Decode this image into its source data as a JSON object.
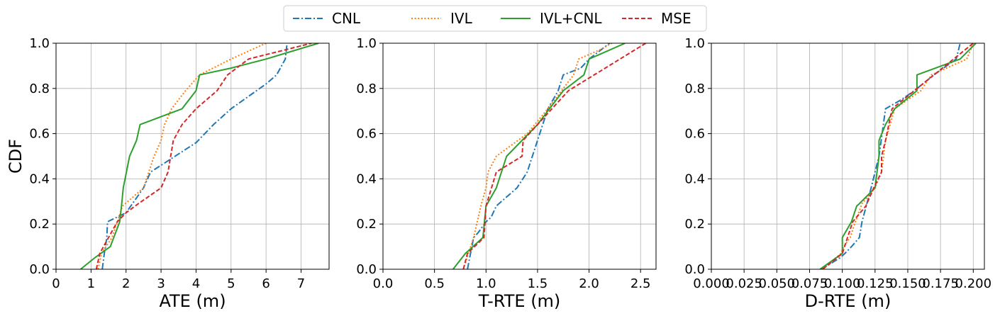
{
  "legend": {
    "placement": "top-center",
    "entries": [
      {
        "label": "CNL",
        "color": "#1f77b4",
        "dash": "dashdot"
      },
      {
        "label": "IVL",
        "color": "#ff7f0e",
        "dash": "dotted"
      },
      {
        "label": "IVL+CNL",
        "color": "#2ca02c",
        "dash": "solid"
      },
      {
        "label": "MSE",
        "color": "#d62728",
        "dash": "dashed"
      }
    ]
  },
  "chart_data": [
    {
      "type": "line",
      "xlabel": "ATE (m)",
      "ylabel": "CDF",
      "xlim": [
        0,
        7.8
      ],
      "ylim": [
        0,
        1.0
      ],
      "xticks": [
        "0",
        "1",
        "2",
        "3",
        "4",
        "5",
        "6",
        "7"
      ],
      "yticks": [
        "0.0",
        "0.2",
        "0.4",
        "0.6",
        "0.8",
        "1.0"
      ],
      "grid": true,
      "series": [
        {
          "name": "CNL",
          "x": [
            1.32,
            1.38,
            1.45,
            1.47,
            2.0,
            2.5,
            2.7,
            3.0,
            4.0,
            4.5,
            5.0,
            6.0,
            6.3,
            6.55,
            6.6
          ],
          "y": [
            0.0,
            0.07,
            0.14,
            0.21,
            0.25,
            0.36,
            0.43,
            0.46,
            0.56,
            0.64,
            0.71,
            0.82,
            0.86,
            0.93,
            1.0
          ]
        },
        {
          "name": "IVL",
          "x": [
            1.2,
            1.3,
            1.6,
            1.75,
            1.9,
            2.5,
            2.8,
            3.0,
            3.1,
            3.3,
            3.7,
            4.1,
            5.0,
            6.0
          ],
          "y": [
            0.0,
            0.07,
            0.14,
            0.21,
            0.28,
            0.36,
            0.5,
            0.57,
            0.64,
            0.71,
            0.79,
            0.86,
            0.93,
            1.0
          ]
        },
        {
          "name": "IVL+CNL",
          "x": [
            0.7,
            1.1,
            1.55,
            1.65,
            1.82,
            1.87,
            1.92,
            2.1,
            2.3,
            2.4,
            3.6,
            4.0,
            4.1,
            5.0,
            6.0,
            7.5
          ],
          "y": [
            0.0,
            0.05,
            0.1,
            0.14,
            0.21,
            0.28,
            0.36,
            0.5,
            0.57,
            0.64,
            0.71,
            0.79,
            0.86,
            0.89,
            0.93,
            1.0
          ]
        },
        {
          "name": "MSE",
          "x": [
            1.15,
            1.25,
            1.5,
            1.75,
            2.0,
            2.35,
            3.0,
            3.2,
            3.35,
            3.6,
            4.0,
            4.6,
            4.9,
            5.5,
            7.3
          ],
          "y": [
            0.0,
            0.07,
            0.14,
            0.21,
            0.25,
            0.29,
            0.36,
            0.43,
            0.57,
            0.64,
            0.71,
            0.79,
            0.86,
            0.93,
            1.0
          ]
        }
      ]
    },
    {
      "type": "line",
      "xlabel": "T-RTE (m)",
      "ylabel": "",
      "xlim": [
        0,
        2.65
      ],
      "ylim": [
        0,
        1.0
      ],
      "xticks": [
        "0.0",
        "0.5",
        "1.0",
        "1.5",
        "2.0",
        "2.5"
      ],
      "yticks": [
        "0.0",
        "0.2",
        "0.4",
        "0.6",
        "0.8",
        "1.0"
      ],
      "grid": true,
      "series": [
        {
          "name": "CNL",
          "x": [
            0.82,
            0.88,
            0.92,
            1.0,
            1.05,
            1.1,
            1.3,
            1.4,
            1.5,
            1.6,
            1.7,
            1.75,
            1.92,
            2.0,
            2.2
          ],
          "y": [
            0.0,
            0.14,
            0.16,
            0.21,
            0.23,
            0.28,
            0.36,
            0.43,
            0.57,
            0.71,
            0.79,
            0.86,
            0.89,
            0.93,
            1.0
          ]
        },
        {
          "name": "IVL",
          "x": [
            0.78,
            0.88,
            0.95,
            1.0,
            1.02,
            1.1,
            1.4,
            1.6,
            1.85,
            1.9,
            2.1,
            2.22
          ],
          "y": [
            0.0,
            0.14,
            0.28,
            0.36,
            0.43,
            0.5,
            0.6,
            0.71,
            0.86,
            0.93,
            0.97,
            1.0
          ]
        },
        {
          "name": "IVL+CNL",
          "x": [
            0.68,
            0.8,
            0.97,
            1.0,
            1.1,
            1.2,
            1.5,
            1.75,
            1.95,
            2.0,
            2.35
          ],
          "y": [
            0.0,
            0.07,
            0.14,
            0.28,
            0.36,
            0.5,
            0.64,
            0.79,
            0.86,
            0.93,
            1.0
          ]
        },
        {
          "name": "MSE",
          "x": [
            0.78,
            0.82,
            0.98,
            1.0,
            1.1,
            1.35,
            1.36,
            1.5,
            1.8,
            2.55
          ],
          "y": [
            0.0,
            0.07,
            0.14,
            0.28,
            0.43,
            0.5,
            0.57,
            0.64,
            0.79,
            1.0
          ]
        }
      ]
    },
    {
      "type": "line",
      "xlabel": "D-RTE (m)",
      "ylabel": "",
      "xlim": [
        0,
        0.2085
      ],
      "ylim": [
        0,
        1.0
      ],
      "xticks": [
        "0.000",
        "0.025",
        "0.050",
        "0.075",
        "0.100",
        "0.125",
        "0.150",
        "0.175",
        "0.200"
      ],
      "yticks": [
        "0.0",
        "0.2",
        "0.4",
        "0.6",
        "0.8",
        "1.0"
      ],
      "grid": true,
      "series": [
        {
          "name": "CNL",
          "x": [
            0.084,
            0.098,
            0.102,
            0.107,
            0.113,
            0.115,
            0.122,
            0.125,
            0.128,
            0.133,
            0.145,
            0.155,
            0.17,
            0.187,
            0.19
          ],
          "y": [
            0.0,
            0.05,
            0.07,
            0.1,
            0.14,
            0.21,
            0.36,
            0.43,
            0.5,
            0.71,
            0.75,
            0.79,
            0.86,
            0.93,
            1.0
          ]
        },
        {
          "name": "IVL",
          "x": [
            0.085,
            0.099,
            0.101,
            0.106,
            0.11,
            0.115,
            0.125,
            0.13,
            0.133,
            0.14,
            0.16,
            0.168,
            0.195,
            0.2
          ],
          "y": [
            0.0,
            0.07,
            0.1,
            0.14,
            0.21,
            0.29,
            0.36,
            0.43,
            0.57,
            0.71,
            0.79,
            0.86,
            0.93,
            1.0
          ]
        },
        {
          "name": "IVL+CNL",
          "x": [
            0.083,
            0.1,
            0.1,
            0.107,
            0.111,
            0.113,
            0.125,
            0.128,
            0.128,
            0.133,
            0.14,
            0.157,
            0.157,
            0.19,
            0.202
          ],
          "y": [
            0.0,
            0.07,
            0.14,
            0.21,
            0.28,
            0.29,
            0.36,
            0.5,
            0.57,
            0.64,
            0.71,
            0.79,
            0.86,
            0.93,
            1.0
          ]
        },
        {
          "name": "MSE",
          "x": [
            0.085,
            0.1,
            0.104,
            0.108,
            0.118,
            0.124,
            0.13,
            0.13,
            0.133,
            0.138,
            0.155,
            0.17,
            0.185,
            0.2
          ],
          "y": [
            0.0,
            0.07,
            0.14,
            0.21,
            0.28,
            0.36,
            0.43,
            0.5,
            0.57,
            0.71,
            0.79,
            0.86,
            0.93,
            1.0
          ]
        }
      ]
    }
  ]
}
